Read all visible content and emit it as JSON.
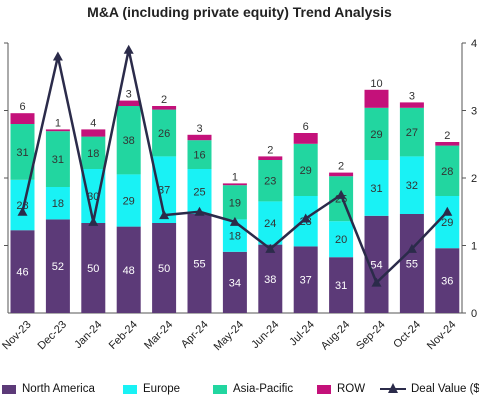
{
  "chart_data": {
    "type": "bar",
    "title": "M&A (including private equity) Trend Analysis",
    "categories": [
      "Nov-23",
      "Dec-23",
      "Jan-24",
      "Feb-24",
      "Mar-24",
      "Apr-24",
      "May-24",
      "Jun-24",
      "Jul-24",
      "Aug-24",
      "Sep-24",
      "Oct-24",
      "Nov-24"
    ],
    "stacked": true,
    "series": [
      {
        "name": "North America",
        "color": "#5c3a78",
        "values": [
          46,
          52,
          50,
          48,
          50,
          55,
          34,
          38,
          37,
          31,
          54,
          55,
          36
        ]
      },
      {
        "name": "Europe",
        "color": "#19f2f5",
        "values": [
          28,
          18,
          30,
          29,
          37,
          25,
          18,
          24,
          28,
          20,
          31,
          32,
          29
        ]
      },
      {
        "name": "Asia-Pacific",
        "color": "#22d6a0",
        "values": [
          31,
          31,
          18,
          38,
          26,
          16,
          19,
          23,
          29,
          25,
          29,
          27,
          28
        ]
      },
      {
        "name": "ROW",
        "color": "#c4117a",
        "values": [
          6,
          1,
          4,
          3,
          2,
          3,
          1,
          2,
          6,
          2,
          10,
          3,
          2
        ]
      }
    ],
    "line_series": {
      "name": "Deal Value ($B",
      "color": "#2b2b4a",
      "marker": "triangle",
      "values": [
        1.5,
        3.8,
        1.35,
        3.9,
        1.45,
        1.5,
        1.35,
        0.95,
        1.4,
        1.75,
        0.45,
        0.95,
        1.5
      ]
    },
    "left_axis": {
      "range": [
        0,
        150
      ]
    },
    "right_axis": {
      "range": [
        0,
        4
      ],
      "ticks": [
        "0",
        "1",
        "2",
        "3",
        "4"
      ],
      "ticks_visible": [
        "0",
        "1",
        "2",
        "3",
        "4"
      ]
    },
    "grid": false,
    "legend_position": "bottom"
  }
}
